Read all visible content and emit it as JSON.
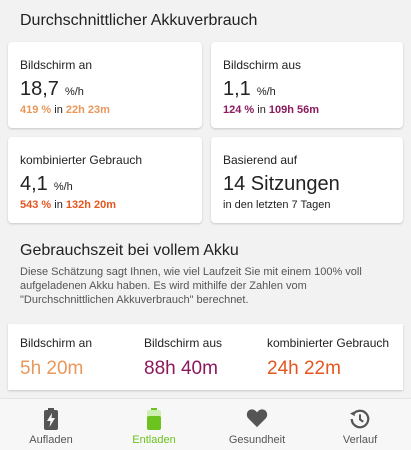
{
  "avg_section": {
    "title": "Durchschnittlicher Akkuverbrauch"
  },
  "cards": {
    "screen_on": {
      "label": "Bildschirm an",
      "value": "18,7",
      "unit": "%/h",
      "sub_pct": "419 %",
      "sub_in": "in",
      "sub_time": "22h 23m"
    },
    "screen_off": {
      "label": "Bildschirm aus",
      "value": "1,1",
      "unit": "%/h",
      "sub_pct": "124 %",
      "sub_in": "in",
      "sub_time": "109h 56m"
    },
    "combined": {
      "label": "kombinierter Gebrauch",
      "value": "4,1",
      "unit": "%/h",
      "sub_pct": "543 %",
      "sub_in": "in",
      "sub_time": "132h 20m"
    },
    "based_on": {
      "label": "Basierend auf",
      "value": "14 Sitzungen",
      "sub": "in den letzten 7 Tagen"
    }
  },
  "full_section": {
    "title": "Gebrauchszeit bei vollem Akku",
    "description": "Diese Schätzung sagt Ihnen, wie viel Laufzeit Sie mit einem 100% voll aufgeladenen Akku haben. Es wird mithilfe der Zahlen vom \"Durchschnittlichen Akkuverbrauch\" berechnet.",
    "columns": [
      {
        "label": "Bildschirm an",
        "value": "5h 20m"
      },
      {
        "label": "Bildschirm aus",
        "value": "88h 40m"
      },
      {
        "label": "kombinierter Gebrauch",
        "value": "24h 22m"
      }
    ]
  },
  "nav": {
    "items": [
      {
        "label": "Aufladen",
        "icon": "battery-charging-icon"
      },
      {
        "label": "Entladen",
        "icon": "battery-discharging-icon"
      },
      {
        "label": "Gesundheit",
        "icon": "heart-icon"
      },
      {
        "label": "Verlauf",
        "icon": "history-icon"
      }
    ],
    "active_index": 1
  },
  "colors": {
    "screen_on": "#e8985c",
    "screen_off": "#8b1a5c",
    "combined": "#e5561f",
    "active_nav": "#6cc21f"
  }
}
